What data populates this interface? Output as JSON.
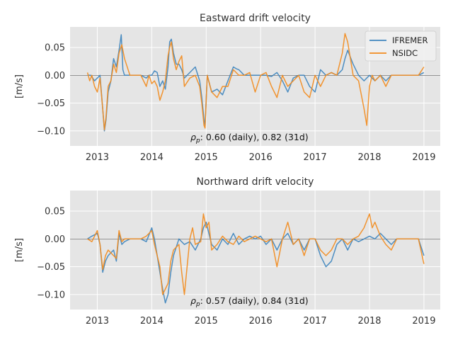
{
  "chart_data": [
    {
      "type": "line",
      "title": "Eastward drift velocity",
      "xlabel": "",
      "ylabel": "[m/s]",
      "xlim": [
        2012.5,
        2019.3
      ],
      "ylim": [
        -0.127,
        0.087
      ],
      "x_ticks": [
        2013,
        2014,
        2015,
        2016,
        2017,
        2018,
        2019
      ],
      "y_ticks": [
        -0.1,
        -0.05,
        0.0,
        0.05
      ],
      "y_tick_labels": [
        "−0.10",
        "−0.05",
        "0.00",
        "0.05"
      ],
      "grid": true,
      "legend": "top-right",
      "annotation": ": 0.60 (daily), 0.82 (31d)",
      "annotation_symbol": "ρ",
      "annotation_subscript": "p",
      "series": [
        {
          "name": "IFREMER",
          "color": "#3f86be",
          "x": [
            2012.82,
            2012.88,
            2012.95,
            2013.0,
            2013.05,
            2013.1,
            2013.13,
            2013.16,
            2013.2,
            2013.25,
            2013.3,
            2013.35,
            2013.4,
            2013.44,
            2013.47,
            2013.5,
            2013.6,
            2013.8,
            2013.9,
            2013.95,
            2014.0,
            2014.05,
            2014.1,
            2014.15,
            2014.2,
            2014.25,
            2014.3,
            2014.33,
            2014.36,
            2014.4,
            2014.45,
            2014.5,
            2014.55,
            2014.6,
            2014.7,
            2014.8,
            2014.88,
            2014.92,
            2014.96,
            2014.98,
            2015.02,
            2015.1,
            2015.2,
            2015.3,
            2015.4,
            2015.5,
            2015.55,
            2015.6,
            2015.7,
            2015.8,
            2015.9,
            2016.0,
            2016.1,
            2016.2,
            2016.3,
            2016.4,
            2016.5,
            2016.6,
            2016.7,
            2016.8,
            2016.9,
            2017.0,
            2017.1,
            2017.2,
            2017.3,
            2017.4,
            2017.5,
            2017.55,
            2017.6,
            2017.7,
            2017.8,
            2017.9,
            2018.0,
            2018.1,
            2018.2,
            2018.3,
            2018.4,
            2018.5,
            2018.6,
            2018.7,
            2018.8,
            2018.9,
            2019.0
          ],
          "y": [
            0.0,
            0.0,
            -0.01,
            -0.005,
            0.0,
            -0.06,
            -0.1,
            -0.08,
            -0.03,
            -0.01,
            0.03,
            0.015,
            0.045,
            0.073,
            0.01,
            0.0,
            0.0,
            0.0,
            -0.005,
            0.0,
            0.0,
            0.008,
            0.005,
            -0.02,
            -0.01,
            -0.025,
            0.015,
            0.06,
            0.065,
            0.04,
            0.02,
            0.02,
            0.01,
            -0.005,
            0.005,
            0.015,
            -0.01,
            -0.04,
            -0.08,
            -0.09,
            0.0,
            -0.03,
            -0.025,
            -0.035,
            -0.01,
            0.015,
            0.012,
            0.01,
            0.0,
            0.0,
            0.0,
            0.0,
            0.0,
            -0.002,
            0.005,
            -0.01,
            -0.03,
            -0.005,
            0.0,
            0.0,
            -0.02,
            -0.03,
            0.01,
            0.0,
            0.005,
            0.0,
            0.01,
            0.03,
            0.045,
            0.02,
            0.0,
            -0.01,
            0.0,
            -0.01,
            0.0,
            -0.01,
            0.0,
            0.0,
            0.0,
            0.0,
            0.0,
            0.0,
            0.005
          ]
        },
        {
          "name": "NSIDC",
          "color": "#f28c1f",
          "x": [
            2012.82,
            2012.86,
            2012.9,
            2012.95,
            2013.0,
            2013.05,
            2013.1,
            2013.13,
            2013.16,
            2013.2,
            2013.25,
            2013.3,
            2013.35,
            2013.4,
            2013.45,
            2013.5,
            2013.6,
            2013.8,
            2013.9,
            2013.95,
            2014.0,
            2014.05,
            2014.1,
            2014.15,
            2014.2,
            2014.25,
            2014.3,
            2014.33,
            2014.36,
            2014.4,
            2014.45,
            2014.5,
            2014.55,
            2014.6,
            2014.7,
            2014.8,
            2014.88,
            2014.92,
            2014.96,
            2014.98,
            2015.02,
            2015.1,
            2015.2,
            2015.3,
            2015.4,
            2015.5,
            2015.55,
            2015.6,
            2015.7,
            2015.8,
            2015.9,
            2016.0,
            2016.1,
            2016.2,
            2016.3,
            2016.4,
            2016.5,
            2016.6,
            2016.7,
            2016.8,
            2016.9,
            2017.0,
            2017.1,
            2017.2,
            2017.3,
            2017.4,
            2017.5,
            2017.55,
            2017.6,
            2017.7,
            2017.8,
            2017.9,
            2017.95,
            2018.0,
            2018.05,
            2018.1,
            2018.2,
            2018.3,
            2018.4,
            2018.5,
            2018.6,
            2018.7,
            2018.8,
            2018.9,
            2019.0
          ],
          "y": [
            0.005,
            -0.01,
            0.0,
            -0.02,
            -0.03,
            -0.005,
            -0.06,
            -0.098,
            -0.075,
            -0.02,
            -0.01,
            0.02,
            0.005,
            0.04,
            0.055,
            0.03,
            0.0,
            0.0,
            -0.02,
            0.0,
            -0.015,
            -0.01,
            -0.02,
            -0.045,
            -0.03,
            -0.01,
            0.035,
            0.05,
            0.06,
            0.03,
            0.01,
            0.025,
            0.035,
            -0.02,
            -0.005,
            0.0,
            -0.02,
            -0.05,
            -0.09,
            -0.095,
            0.0,
            -0.03,
            -0.04,
            -0.02,
            -0.02,
            0.01,
            0.005,
            0.0,
            0.0,
            0.005,
            -0.03,
            0.0,
            0.005,
            -0.02,
            -0.04,
            0.0,
            -0.02,
            -0.01,
            0.0,
            -0.03,
            -0.04,
            0.0,
            -0.02,
            0.0,
            0.005,
            0.0,
            0.04,
            0.075,
            0.06,
            0.0,
            -0.01,
            -0.06,
            -0.09,
            -0.02,
            0.0,
            -0.01,
            0.0,
            -0.02,
            0.0,
            0.0,
            0.0,
            0.0,
            0.0,
            0.0,
            0.015
          ]
        }
      ]
    },
    {
      "type": "line",
      "title": "Northward drift velocity",
      "xlabel": "",
      "ylabel": "[m/s]",
      "xlim": [
        2012.5,
        2019.3
      ],
      "ylim": [
        -0.127,
        0.087
      ],
      "x_ticks": [
        2013,
        2014,
        2015,
        2016,
        2017,
        2018,
        2019
      ],
      "y_ticks": [
        -0.1,
        -0.05,
        0.0,
        0.05
      ],
      "y_tick_labels": [
        "−0.10",
        "−0.05",
        "0.00",
        "0.05"
      ],
      "grid": true,
      "annotation": ": 0.57 (daily), 0.84 (31d)",
      "annotation_symbol": "ρ",
      "annotation_subscript": "p",
      "series": [
        {
          "name": "IFREMER",
          "color": "#3f86be",
          "x": [
            2012.82,
            2012.9,
            2013.0,
            2013.05,
            2013.1,
            2013.15,
            2013.2,
            2013.3,
            2013.35,
            2013.4,
            2013.45,
            2013.5,
            2013.6,
            2013.8,
            2013.9,
            2014.0,
            2014.05,
            2014.1,
            2014.15,
            2014.2,
            2014.25,
            2014.3,
            2014.35,
            2014.4,
            2014.5,
            2014.6,
            2014.7,
            2014.8,
            2014.9,
            2014.95,
            2015.0,
            2015.05,
            2015.1,
            2015.2,
            2015.3,
            2015.4,
            2015.5,
            2015.6,
            2015.7,
            2015.8,
            2015.9,
            2016.0,
            2016.1,
            2016.2,
            2016.3,
            2016.4,
            2016.5,
            2016.6,
            2016.7,
            2016.8,
            2016.9,
            2017.0,
            2017.1,
            2017.2,
            2017.3,
            2017.4,
            2017.5,
            2017.6,
            2017.7,
            2017.8,
            2017.9,
            2018.0,
            2018.1,
            2018.2,
            2018.3,
            2018.4,
            2018.5,
            2018.6,
            2018.7,
            2018.8,
            2018.9,
            2019.0
          ],
          "y": [
            0.0,
            0.005,
            0.01,
            -0.01,
            -0.06,
            -0.04,
            -0.03,
            -0.02,
            -0.04,
            0.01,
            -0.01,
            -0.005,
            0.0,
            0.0,
            -0.005,
            0.02,
            0.0,
            -0.03,
            -0.06,
            -0.09,
            -0.115,
            -0.1,
            -0.06,
            -0.03,
            0.0,
            -0.01,
            -0.005,
            -0.02,
            0.0,
            0.02,
            0.03,
            0.01,
            -0.01,
            -0.02,
            0.0,
            -0.01,
            0.01,
            -0.01,
            0.0,
            0.005,
            0.0,
            0.005,
            -0.01,
            0.0,
            -0.02,
            0.0,
            0.01,
            -0.01,
            0.0,
            -0.02,
            0.0,
            0.0,
            -0.03,
            -0.05,
            -0.04,
            -0.01,
            0.0,
            -0.02,
            0.0,
            -0.005,
            0.0,
            0.005,
            0.0,
            0.01,
            0.0,
            -0.01,
            0.0,
            0.0,
            0.0,
            0.0,
            0.0,
            -0.03
          ]
        },
        {
          "name": "NSIDC",
          "color": "#f28c1f",
          "x": [
            2012.82,
            2012.9,
            2013.0,
            2013.05,
            2013.1,
            2013.15,
            2013.2,
            2013.3,
            2013.35,
            2013.4,
            2013.45,
            2013.5,
            2013.6,
            2013.8,
            2013.9,
            2014.0,
            2014.05,
            2014.1,
            2014.15,
            2014.2,
            2014.25,
            2014.3,
            2014.35,
            2014.4,
            2014.5,
            2014.55,
            2014.6,
            2014.7,
            2014.75,
            2014.8,
            2014.9,
            2014.95,
            2015.0,
            2015.05,
            2015.1,
            2015.2,
            2015.3,
            2015.4,
            2015.5,
            2015.6,
            2015.7,
            2015.8,
            2015.9,
            2016.0,
            2016.1,
            2016.2,
            2016.3,
            2016.4,
            2016.5,
            2016.6,
            2016.7,
            2016.8,
            2016.9,
            2017.0,
            2017.1,
            2017.2,
            2017.3,
            2017.4,
            2017.5,
            2017.6,
            2017.7,
            2017.8,
            2017.9,
            2018.0,
            2018.05,
            2018.1,
            2018.2,
            2018.3,
            2018.4,
            2018.5,
            2018.6,
            2018.7,
            2018.8,
            2018.9,
            2019.0
          ],
          "y": [
            0.0,
            -0.005,
            0.015,
            -0.01,
            -0.055,
            -0.03,
            -0.02,
            -0.03,
            -0.035,
            0.015,
            -0.005,
            0.0,
            0.0,
            0.0,
            0.005,
            0.015,
            -0.01,
            -0.03,
            -0.05,
            -0.1,
            -0.09,
            -0.08,
            -0.04,
            -0.02,
            -0.01,
            -0.06,
            -0.1,
            0.0,
            0.02,
            -0.01,
            -0.005,
            0.045,
            0.02,
            0.03,
            -0.02,
            -0.01,
            0.005,
            -0.005,
            -0.01,
            0.005,
            -0.005,
            0.0,
            0.005,
            0.0,
            -0.005,
            0.0,
            -0.05,
            0.0,
            0.03,
            -0.01,
            0.0,
            -0.03,
            0.0,
            0.0,
            -0.02,
            -0.03,
            -0.02,
            0.0,
            0.0,
            -0.01,
            0.0,
            0.005,
            0.02,
            0.045,
            0.02,
            0.03,
            0.005,
            -0.01,
            -0.02,
            0.0,
            0.0,
            0.0,
            0.0,
            0.0,
            -0.045
          ]
        }
      ]
    }
  ]
}
